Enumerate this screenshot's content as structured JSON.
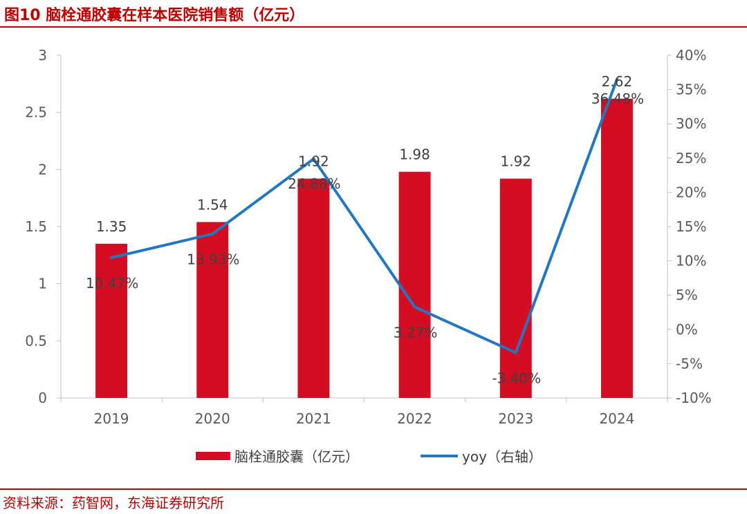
{
  "title": "图10 脑栓通胶囊在样本医院销售额（亿元）",
  "source": "资料来源：药智网，东海证券研究所",
  "colors": {
    "accent": "#c00000",
    "bar": "#d40d22",
    "line": "#1f78c1"
  },
  "chart_data": {
    "type": "bar",
    "categories": [
      "2019",
      "2020",
      "2021",
      "2022",
      "2023",
      "2024"
    ],
    "series": [
      {
        "name": "脑栓通胶囊（亿元）",
        "type": "bar",
        "axis": "left",
        "values": [
          1.35,
          1.54,
          1.92,
          1.98,
          1.92,
          2.62
        ],
        "labels": [
          "1.35",
          "1.54",
          "1.92",
          "1.98",
          "1.92",
          "2.62"
        ]
      },
      {
        "name": "yoy（右轴）",
        "type": "line",
        "axis": "right",
        "values": [
          10.47,
          13.93,
          24.88,
          3.27,
          -3.4,
          36.48
        ],
        "labels": [
          "10.47%",
          "13.93%",
          "24.88%",
          "3.27%",
          "-3.40%",
          "36.48%"
        ]
      }
    ],
    "y_left": {
      "ylim": [
        0,
        3
      ],
      "ticks": [
        "0",
        "0.5",
        "1",
        "1.5",
        "2",
        "2.5",
        "3"
      ]
    },
    "y_right": {
      "ylim": [
        -10,
        40
      ],
      "ticks": [
        "-10%",
        "-5%",
        "0%",
        "5%",
        "10%",
        "15%",
        "20%",
        "25%",
        "30%",
        "35%",
        "40%"
      ]
    },
    "legend_position": "bottom"
  }
}
